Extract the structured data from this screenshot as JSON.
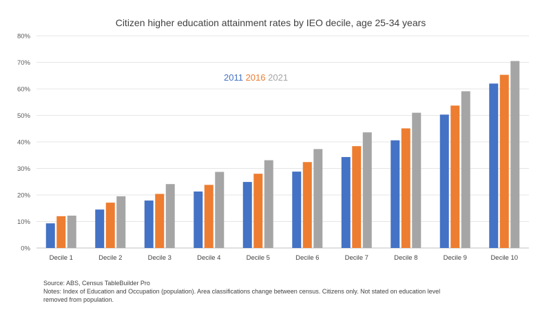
{
  "chart_data": {
    "type": "bar",
    "title": "Citizen higher education attainment rates by IEO decile, age 25-34 years",
    "xlabel": "",
    "ylabel": "",
    "ylim": [
      0,
      80
    ],
    "yticks": [
      0,
      10,
      20,
      30,
      40,
      50,
      60,
      70,
      80
    ],
    "ytick_labels": [
      "0%",
      "10%",
      "20%",
      "30%",
      "40%",
      "50%",
      "60%",
      "70%",
      "80%"
    ],
    "grid": true,
    "legend_position": "inside-top-left",
    "categories": [
      "Decile 1",
      "Decile 2",
      "Decile 3",
      "Decile 4",
      "Decile 5",
      "Decile 6",
      "Decile 7",
      "Decile 8",
      "Decile 9",
      "Decile 10"
    ],
    "series": [
      {
        "name": "2011",
        "color": "#4472C4",
        "values": [
          9.3,
          14.5,
          17.9,
          21.3,
          24.9,
          28.8,
          34.3,
          40.6,
          50.3,
          62.0
        ]
      },
      {
        "name": "2016",
        "color": "#ED7D31",
        "values": [
          12.0,
          17.1,
          20.4,
          23.8,
          28.0,
          32.4,
          38.4,
          45.1,
          53.7,
          65.3
        ]
      },
      {
        "name": "2021",
        "color": "#A5A5A5",
        "values": [
          12.2,
          19.5,
          24.1,
          28.7,
          33.1,
          37.3,
          43.6,
          51.0,
          59.1,
          70.5
        ]
      }
    ]
  },
  "notes": {
    "source": "Source: ABS, Census TableBuilder Pro",
    "line1": "Notes: Index of Education and Occupation (population). Area classifications change between census. Citizens only. Not stated on education level",
    "line2": "removed from population."
  }
}
